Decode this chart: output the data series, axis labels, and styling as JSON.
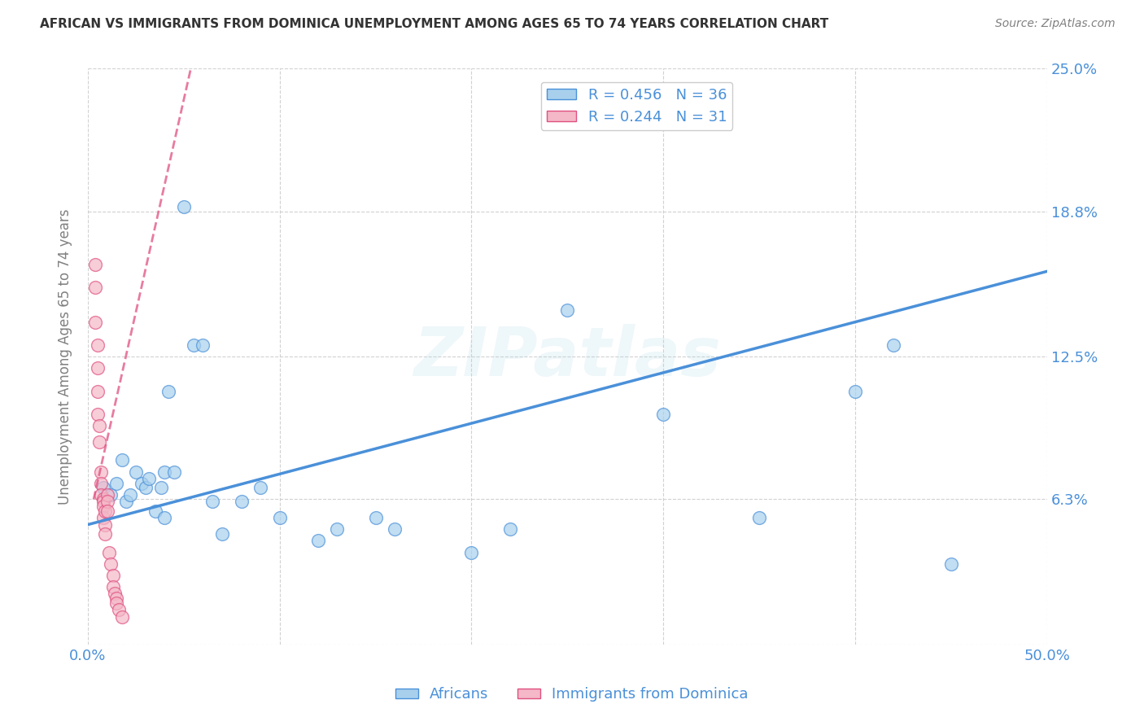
{
  "title": "AFRICAN VS IMMIGRANTS FROM DOMINICA UNEMPLOYMENT AMONG AGES 65 TO 74 YEARS CORRELATION CHART",
  "source": "Source: ZipAtlas.com",
  "ylabel": "Unemployment Among Ages 65 to 74 years",
  "xlim": [
    0.0,
    0.5
  ],
  "ylim": [
    0.0,
    0.25
  ],
  "yticks": [
    0.0,
    0.063,
    0.125,
    0.188,
    0.25
  ],
  "ytick_labels": [
    "",
    "6.3%",
    "12.5%",
    "18.8%",
    "25.0%"
  ],
  "xticks": [
    0.0,
    0.1,
    0.2,
    0.3,
    0.4,
    0.5
  ],
  "xtick_labels": [
    "0.0%",
    "",
    "",
    "",
    "",
    "50.0%"
  ],
  "blue_color": "#a8d0ed",
  "pink_color": "#f4b8c8",
  "blue_line_color": "#4a90d9",
  "pink_line_color": "#e05080",
  "tick_label_color": "#4a90d9",
  "watermark": "ZIPatlas",
  "blue_line_x0": 0.0,
  "blue_line_y0": 0.052,
  "blue_line_x1": 0.5,
  "blue_line_y1": 0.162,
  "pink_line_x0": 0.003,
  "pink_line_y0": 0.063,
  "pink_line_x1": 0.055,
  "pink_line_y1": 0.255,
  "africans_x": [
    0.008,
    0.012,
    0.015,
    0.018,
    0.02,
    0.022,
    0.025,
    0.028,
    0.03,
    0.032,
    0.035,
    0.038,
    0.04,
    0.04,
    0.042,
    0.045,
    0.05,
    0.055,
    0.06,
    0.065,
    0.07,
    0.08,
    0.09,
    0.1,
    0.12,
    0.13,
    0.15,
    0.16,
    0.2,
    0.22,
    0.25,
    0.3,
    0.35,
    0.4,
    0.42,
    0.45
  ],
  "africans_y": [
    0.068,
    0.065,
    0.07,
    0.08,
    0.062,
    0.065,
    0.075,
    0.07,
    0.068,
    0.072,
    0.058,
    0.068,
    0.075,
    0.055,
    0.11,
    0.075,
    0.19,
    0.13,
    0.13,
    0.062,
    0.048,
    0.062,
    0.068,
    0.055,
    0.045,
    0.05,
    0.055,
    0.05,
    0.04,
    0.05,
    0.145,
    0.1,
    0.055,
    0.11,
    0.13,
    0.035
  ],
  "dominica_x": [
    0.004,
    0.004,
    0.004,
    0.005,
    0.005,
    0.005,
    0.005,
    0.006,
    0.006,
    0.007,
    0.007,
    0.007,
    0.008,
    0.008,
    0.008,
    0.008,
    0.009,
    0.009,
    0.009,
    0.01,
    0.01,
    0.01,
    0.011,
    0.012,
    0.013,
    0.013,
    0.014,
    0.015,
    0.015,
    0.016,
    0.018
  ],
  "dominica_y": [
    0.165,
    0.155,
    0.14,
    0.13,
    0.12,
    0.11,
    0.1,
    0.095,
    0.088,
    0.075,
    0.07,
    0.065,
    0.063,
    0.062,
    0.06,
    0.055,
    0.058,
    0.052,
    0.048,
    0.065,
    0.062,
    0.058,
    0.04,
    0.035,
    0.03,
    0.025,
    0.022,
    0.02,
    0.018,
    0.015,
    0.012
  ]
}
